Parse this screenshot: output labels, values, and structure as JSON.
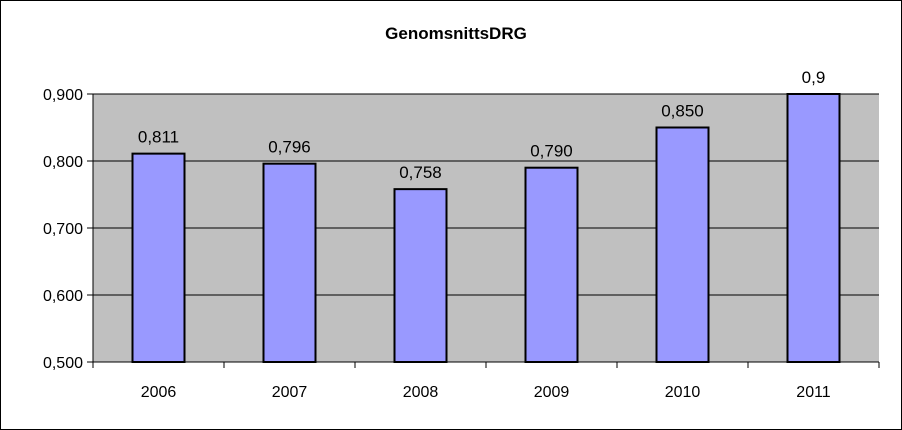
{
  "chart_data": {
    "type": "bar",
    "title": "GenomsnittsDRG",
    "categories": [
      "2006",
      "2007",
      "2008",
      "2009",
      "2010",
      "2011"
    ],
    "values": [
      0.811,
      0.796,
      0.758,
      0.79,
      0.85,
      0.9
    ],
    "data_labels": [
      "0,811",
      "0,796",
      "0,758",
      "0,790",
      "0,850",
      "0,9"
    ],
    "y_tick_labels": [
      "0,500",
      "0,600",
      "0,700",
      "0,800",
      "0,900"
    ],
    "ylim": [
      0.5,
      0.9
    ],
    "y_ticks": [
      0.5,
      0.6,
      0.7,
      0.8,
      0.9
    ],
    "xlabel": "",
    "ylabel": "",
    "grid": true,
    "legend": "none",
    "colors": {
      "bar_fill": "#9999ff",
      "bar_stroke": "#000000",
      "plot_bg": "#c0c0c0",
      "grid": "#000000"
    }
  }
}
